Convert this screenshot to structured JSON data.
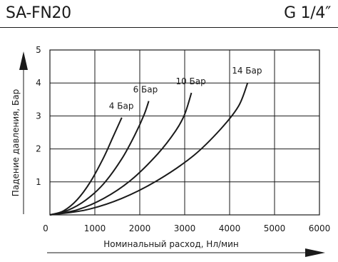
{
  "header": {
    "model": "SA-FN20",
    "thread": "G 1/4″"
  },
  "chart_data": {
    "type": "line",
    "xlabel": "Номинальный расход, Нл/мин",
    "ylabel": "Падение давления, Бар",
    "xlim": [
      0,
      6000
    ],
    "ylim": [
      0,
      5
    ],
    "xticks": [
      "0",
      "1000",
      "2000",
      "3000",
      "4000",
      "5000",
      "6000"
    ],
    "yticks": [
      "1",
      "2",
      "3",
      "4",
      "5"
    ],
    "grid": true,
    "series": [
      {
        "name": "4 Бар",
        "x": [
          0,
          300,
          600,
          900,
          1200,
          1400,
          1550,
          1600
        ],
        "y": [
          0,
          0.12,
          0.45,
          1.0,
          1.75,
          2.35,
          2.8,
          2.95
        ]
      },
      {
        "name": "6 Бар",
        "x": [
          0,
          400,
          800,
          1200,
          1600,
          1900,
          2100,
          2200
        ],
        "y": [
          0,
          0.14,
          0.45,
          0.95,
          1.7,
          2.45,
          3.05,
          3.45
        ]
      },
      {
        "name": "10 Бар",
        "x": [
          0,
          600,
          1200,
          1800,
          2400,
          2800,
          3000,
          3150
        ],
        "y": [
          0,
          0.15,
          0.5,
          1.05,
          1.85,
          2.55,
          3.05,
          3.7
        ]
      },
      {
        "name": "14 Бар",
        "x": [
          0,
          800,
          1600,
          2400,
          3200,
          3800,
          4200,
          4400
        ],
        "y": [
          0,
          0.15,
          0.5,
          1.05,
          1.8,
          2.6,
          3.3,
          4.0
        ]
      }
    ]
  }
}
